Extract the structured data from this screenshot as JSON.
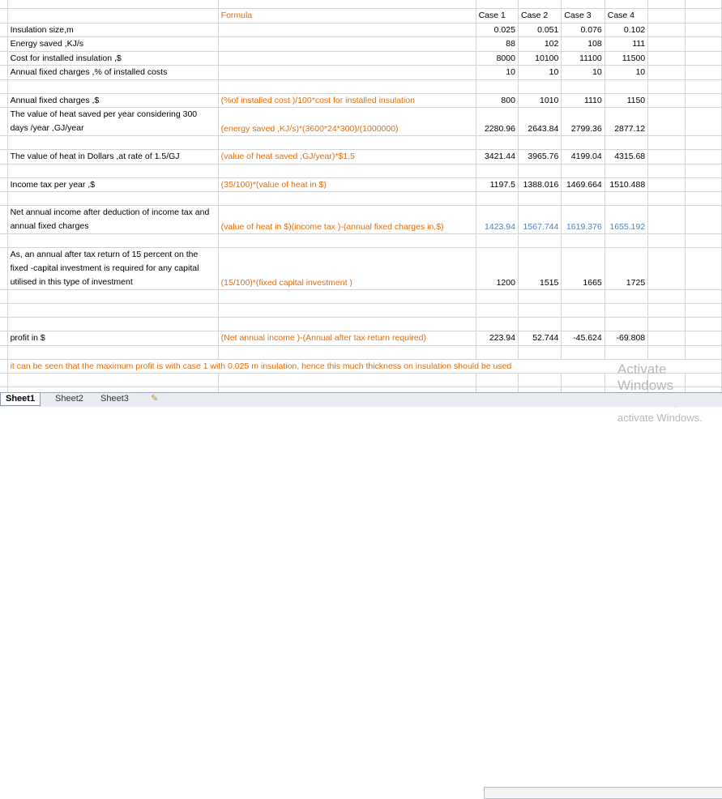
{
  "sheet": {
    "headers": {
      "formula": "Formula",
      "cases": [
        "Case 1",
        "Case 2",
        "Case 3",
        "Case 4"
      ]
    },
    "rows": [
      {
        "label": "",
        "formula": "",
        "values": [
          "",
          "",
          "",
          ""
        ]
      },
      {
        "label": "",
        "formula": "Formula",
        "values": [
          "Case 1",
          "Case 2",
          "Case 3",
          "Case 4"
        ],
        "header": true
      },
      {
        "label": "Insulation size,m",
        "formula": "",
        "values": [
          "0.025",
          "0.051",
          "0.076",
          "0.102"
        ]
      },
      {
        "label": "Energy saved ,KJ/s",
        "formula": "",
        "values": [
          "88",
          "102",
          "108",
          "111"
        ]
      },
      {
        "label": "Cost for installed insulation ,$",
        "formula": "",
        "values": [
          "8000",
          "10100",
          "11100",
          "11500"
        ]
      },
      {
        "label": "Annual fixed charges ,% of installed costs",
        "formula": "",
        "values": [
          "10",
          "10",
          "10",
          "10"
        ]
      },
      {
        "label": "",
        "formula": "",
        "values": [
          "",
          "",
          "",
          ""
        ]
      },
      {
        "label": "Annual fixed charges ,$",
        "formula": "(%of installed cost )/100*cost for installed insulation",
        "values": [
          "800",
          "1010",
          "1110",
          "1150"
        ]
      },
      {
        "label": "The value of heat saved  per year   considering 300 days /year ,GJ/year",
        "formula": "(energy saved ,KJ/s)*(3600*24*300)/(1000000)",
        "values": [
          "2280.96",
          "2643.84",
          "2799.36",
          "2877.12"
        ],
        "lines": 2
      },
      {
        "label": "",
        "formula": "",
        "values": [
          "",
          "",
          "",
          ""
        ]
      },
      {
        "label": "The value of heat in Dollars ,at rate of 1.5/GJ",
        "formula": "(value of heat saved ,GJ/year)*$1.5",
        "values": [
          "3421.44",
          "3965.76",
          "4199.04",
          "4315.68"
        ]
      },
      {
        "label": "",
        "formula": "",
        "values": [
          "",
          "",
          "",
          ""
        ]
      },
      {
        "label": "Income tax per year ,$",
        "formula": "(35/100)*(value  of heat in $)",
        "values": [
          "1197.5",
          "1388.016",
          "1469.664",
          "1510.488"
        ]
      },
      {
        "label": "",
        "formula": "",
        "values": [
          "",
          "",
          "",
          ""
        ]
      },
      {
        "label": "Net annual income after deduction of income tax and annual fixed charges",
        "formula": "(value of heat in $)(income tax )-(annual fixed charges in,$)",
        "values": [
          "1423.94",
          "1567.744",
          "1619.376",
          "1655.192"
        ],
        "lines": 2,
        "blue": true
      },
      {
        "label": "",
        "formula": "",
        "values": [
          "",
          "",
          "",
          ""
        ]
      },
      {
        "label": "As, an annual after tax return of 15 percent on the  fixed -capital investment is required for any capital utilised in this type of investment",
        "formula": "(15/100)*(fixed capital investment )",
        "values": [
          "1200",
          "1515",
          "1665",
          "1725"
        ],
        "lines": 3
      },
      {
        "label": "",
        "formula": "",
        "values": [
          "",
          "",
          "",
          ""
        ]
      },
      {
        "label": "",
        "formula": "",
        "values": [
          "",
          "",
          "",
          ""
        ]
      },
      {
        "label": "",
        "formula": "",
        "values": [
          "",
          "",
          "",
          ""
        ]
      },
      {
        "label": "profit in $",
        "formula": "(Net annual income )-(Annual after tax return required)",
        "values": [
          "223.94",
          "52.744",
          "-45.624",
          "-69.808"
        ]
      },
      {
        "label": "",
        "formula": "",
        "values": [
          "",
          "",
          "",
          ""
        ]
      },
      {
        "conclusion": "it can be seen that the maximum  profit  is with case 1 with 0.025 m insulation, hence this much thickness on insulation should be used"
      },
      {
        "label": "",
        "formula": "",
        "values": [
          "",
          "",
          "",
          ""
        ]
      },
      {
        "label": "",
        "formula": "",
        "values": [
          "",
          "",
          "",
          ""
        ]
      }
    ]
  },
  "tabs": [
    "Sheet1",
    "Sheet2",
    "Sheet3"
  ],
  "active_tab": "Sheet1",
  "watermark": {
    "line1": "Activate Windows",
    "line2": "Go to Settings to activate Windows."
  },
  "colors": {
    "formula": "#e46c0a",
    "net_income": "#4f81bd",
    "grid": "#d4d4d4"
  }
}
